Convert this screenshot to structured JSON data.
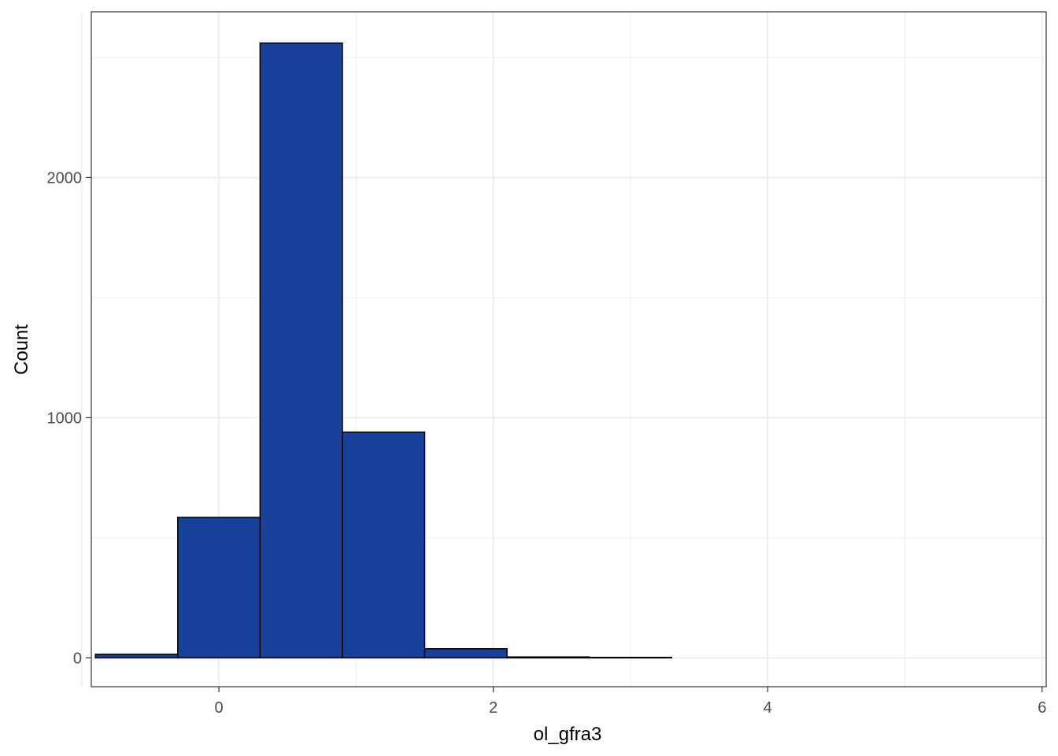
{
  "chart_data": {
    "type": "bar",
    "subtype": "histogram",
    "xlabel": "ol_gfra3",
    "ylabel": "Count",
    "xlim": [
      -0.93,
      6.03
    ],
    "ylim": [
      -120,
      2690
    ],
    "x_ticks": [
      0,
      2,
      4,
      6
    ],
    "y_ticks": [
      0,
      1000,
      2000
    ],
    "bin_width": 0.6,
    "bins": [
      {
        "x0": -1.5,
        "x1": -0.9,
        "count": 0
      },
      {
        "x0": -0.9,
        "x1": -0.3,
        "count": 15
      },
      {
        "x0": -0.3,
        "x1": 0.3,
        "count": 585
      },
      {
        "x0": 0.3,
        "x1": 0.9,
        "count": 2560
      },
      {
        "x0": 0.9,
        "x1": 1.5,
        "count": 940
      },
      {
        "x0": 1.5,
        "x1": 2.1,
        "count": 38
      },
      {
        "x0": 2.1,
        "x1": 2.7,
        "count": 4
      },
      {
        "x0": 2.7,
        "x1": 3.3,
        "count": 2
      },
      {
        "x0": 3.3,
        "x1": 3.9,
        "count": 0
      },
      {
        "x0": 3.9,
        "x1": 4.5,
        "count": 0
      },
      {
        "x0": 4.5,
        "x1": 5.1,
        "count": 0
      },
      {
        "x0": 5.1,
        "x1": 5.7,
        "count": 0
      }
    ],
    "colors": {
      "fill": "#17419A",
      "stroke": "#000000",
      "grid": "#EBEBEB",
      "panel_border": "#333333"
    },
    "grid": true,
    "legend": "none"
  }
}
